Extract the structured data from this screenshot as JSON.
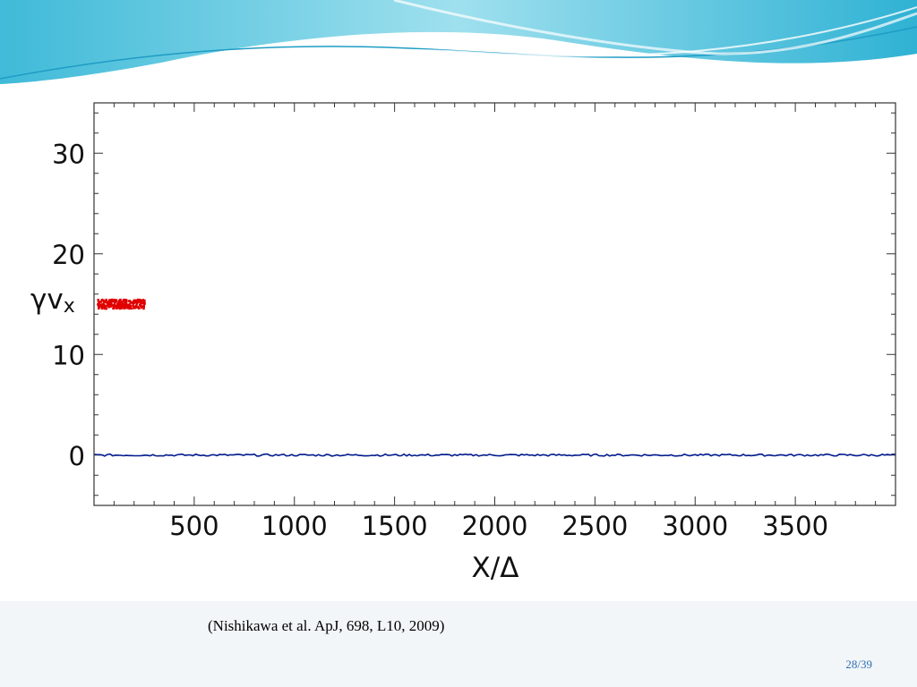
{
  "colors": {
    "header_light": "#d6f2f7",
    "header_mid": "#7fd0e4",
    "header_deep": "#2fb2d4",
    "axis": "#333333",
    "series_initial": "#e00000",
    "series_field": "#001a8c",
    "page_number": "#2f6fb4"
  },
  "chart_data": {
    "type": "scatter",
    "title": "",
    "xlabel": "X/Δ",
    "ylabel_main": "γv",
    "ylabel_sub": "x",
    "xlim": [
      0,
      4000
    ],
    "ylim": [
      -5,
      35
    ],
    "x_ticks": [
      500,
      1000,
      1500,
      2000,
      2500,
      3000,
      3500
    ],
    "y_ticks": [
      0,
      10,
      20,
      30
    ],
    "grid": false,
    "series": [
      {
        "color": "#e00000",
        "x": [
          20,
          60,
          100,
          140,
          180,
          220,
          260
        ],
        "values": [
          15,
          15,
          15,
          15,
          15,
          15,
          15
        ]
      },
      {
        "color": "#001a8c",
        "x": [
          0,
          500,
          1000,
          1500,
          2000,
          2500,
          3000,
          3500,
          4000
        ],
        "values": [
          0,
          0,
          0,
          0,
          0,
          0,
          0,
          0,
          0
        ]
      }
    ]
  },
  "citation": "(Nishikawa et al. ApJ, 698, L10, 2009)",
  "slide_number": "28/39"
}
